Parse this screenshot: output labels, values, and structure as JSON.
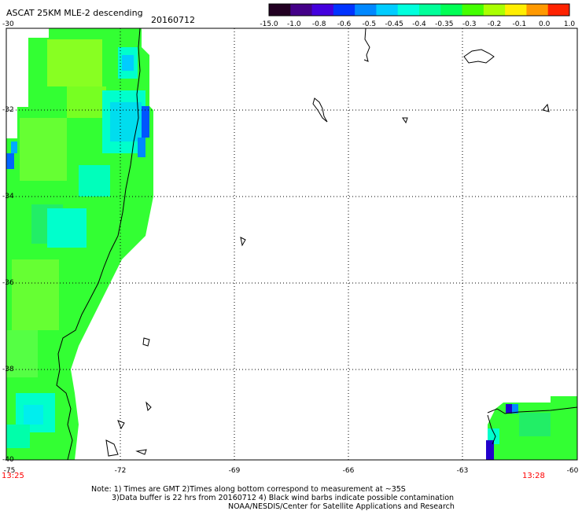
{
  "header": {
    "title": "ASCAT 25KM MLE-2 descending",
    "date": "20160712"
  },
  "colorbar": {
    "labels": [
      "-15.0",
      "-1.0",
      "-0.8",
      "-0.6",
      "-0.5",
      "-0.45",
      "-0.4",
      "-0.35",
      "-0.3",
      "-0.2",
      "-0.1",
      "0.0",
      "1.0"
    ],
    "colors": [
      "#220022",
      "#440088",
      "#4400dd",
      "#0033ff",
      "#0088ff",
      "#00ccff",
      "#00ffdd",
      "#00ff99",
      "#00ff55",
      "#44ff00",
      "#aaff00",
      "#ffee00",
      "#ff9900",
      "#ff2200"
    ]
  },
  "map": {
    "lat_labels": [
      "-30",
      "-32",
      "-34",
      "-36",
      "-38",
      "-40"
    ],
    "lon_labels": [
      "-75",
      "-72",
      "-69",
      "-66",
      "-63",
      "-60"
    ],
    "start_time": "13:25",
    "end_time": "13:28",
    "palette": {
      "bright_green": "#33ff33",
      "mid_green": "#22ee55",
      "yellow_green": "#88ff22",
      "aqua": "#00ffcc",
      "cyan": "#00ddee",
      "blue": "#0066ff",
      "dark_blue": "#2200cc"
    }
  },
  "notes": {
    "line1": "Note: 1) Times are GMT 2)Times along bottom correspond to measurement at ~35S",
    "line2": "3)Data buffer is 22 hrs from 20160712 4) Black wind barbs indicate possible contamination",
    "line3": "NOAA/NESDIS/Center for Satellite Applications and Research"
  }
}
